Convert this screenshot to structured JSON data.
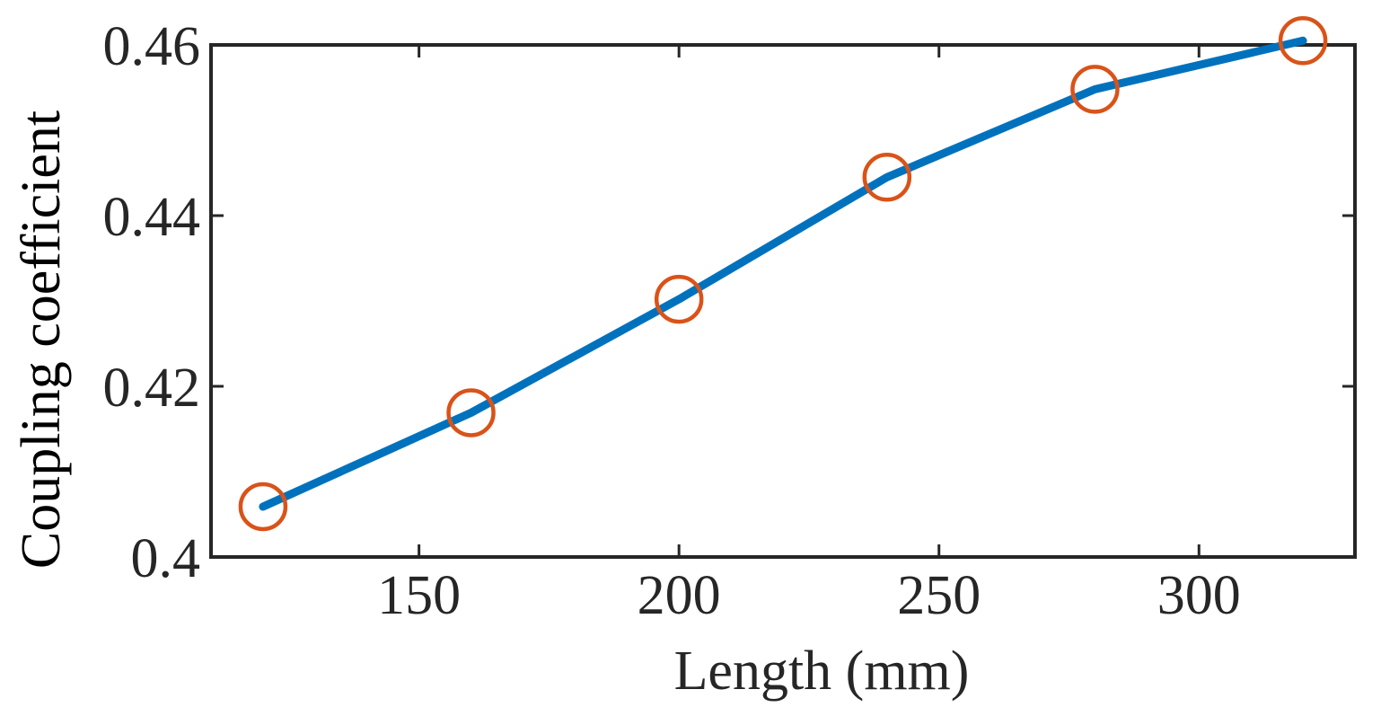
{
  "chart_data": {
    "type": "line",
    "xlabel": "Length (mm)",
    "ylabel": "Coupling coefficient",
    "xlim": [
      110,
      330
    ],
    "ylim": [
      0.4,
      0.46
    ],
    "xticks": [
      150,
      200,
      250,
      300
    ],
    "yticks": [
      0.4,
      0.42,
      0.44,
      0.46
    ],
    "xtick_labels": [
      "150",
      "200",
      "250",
      "300"
    ],
    "ytick_labels": [
      "0.4",
      "0.42",
      "0.44",
      "0.46"
    ],
    "grid": false,
    "series": [
      {
        "x": [
          120,
          160,
          200,
          240,
          280,
          320
        ],
        "y": [
          0.4059,
          0.4169,
          0.4302,
          0.4445,
          0.4548,
          0.4605
        ],
        "line_color": "#0072BD",
        "marker": "circle",
        "marker_color": "#D95319"
      }
    ]
  }
}
